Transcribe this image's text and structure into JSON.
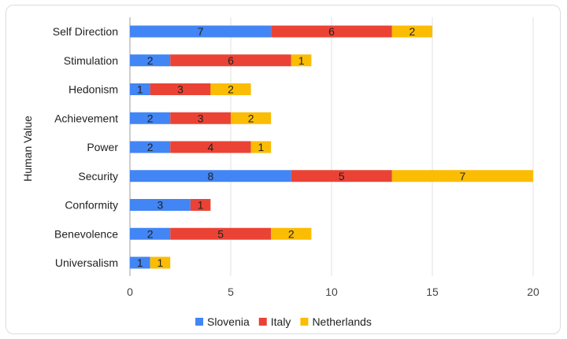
{
  "chart_data": {
    "type": "bar",
    "orientation": "horizontal",
    "stacked": true,
    "title": "",
    "xlabel": "",
    "ylabel": "Human Value",
    "categories": [
      "Self Direction",
      "Stimulation",
      "Hedonism",
      "Achievement",
      "Power",
      "Security",
      "Conformity",
      "Benevolence",
      "Universalism"
    ],
    "series": [
      {
        "name": "Slovenia",
        "color": "#4285f4",
        "values": [
          7,
          2,
          1,
          2,
          2,
          8,
          3,
          2,
          1
        ]
      },
      {
        "name": "Italy",
        "color": "#ea4335",
        "values": [
          6,
          6,
          3,
          3,
          4,
          5,
          1,
          5,
          0
        ]
      },
      {
        "name": "Netherlands",
        "color": "#fbbc04",
        "values": [
          2,
          1,
          2,
          2,
          1,
          7,
          0,
          2,
          1
        ]
      }
    ],
    "xlim": [
      0,
      20
    ],
    "xticks": [
      0,
      5,
      10,
      15,
      20
    ],
    "grid": true,
    "legend_position": "bottom"
  }
}
